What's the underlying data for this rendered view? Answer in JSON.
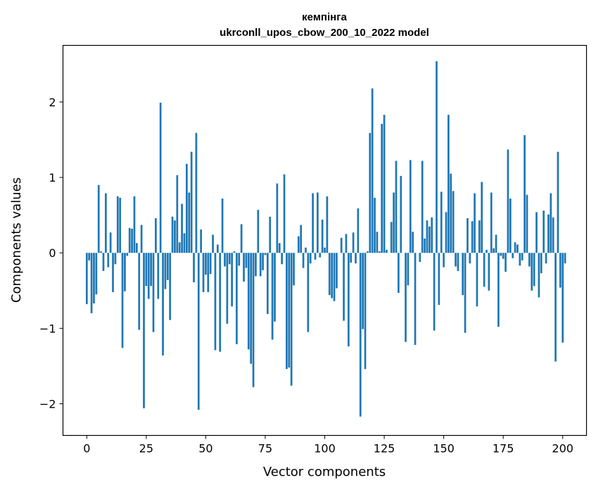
{
  "chart_data": {
    "type": "bar",
    "title": "кемпінга",
    "subtitle": "ukrconll_upos_cbow_200_10_2022 model",
    "xlabel": "Vector components",
    "ylabel": "Components values",
    "xlim": [
      -10,
      210
    ],
    "ylim": [
      -2.42,
      2.75
    ],
    "xticks": [
      0,
      25,
      50,
      75,
      100,
      125,
      150,
      175,
      200
    ],
    "yticks": [
      -2,
      -1,
      0,
      1,
      2
    ],
    "ytick_labels": [
      "−2",
      "−1",
      "0",
      "1",
      "2"
    ],
    "grid": false,
    "bar_color": "#1f77b4",
    "values": [
      -0.68,
      -0.1,
      -0.8,
      -0.67,
      -0.55,
      0.9,
      0.02,
      -0.24,
      0.79,
      -0.19,
      0.27,
      -0.52,
      -0.15,
      0.75,
      0.73,
      -1.26,
      -0.51,
      -0.04,
      0.33,
      0.32,
      0.75,
      0.13,
      -1.02,
      0.37,
      -2.06,
      -0.44,
      -0.61,
      -0.44,
      -1.05,
      0.46,
      -0.61,
      1.99,
      -1.36,
      -0.48,
      -0.36,
      -0.89,
      0.48,
      0.43,
      1.03,
      0.14,
      0.65,
      0.26,
      1.18,
      0.8,
      1.34,
      -0.39,
      1.59,
      -2.08,
      0.31,
      -0.52,
      -0.29,
      -0.52,
      -0.28,
      0.24,
      -1.29,
      0.11,
      -1.31,
      0.72,
      -0.18,
      -0.94,
      -0.15,
      -0.71,
      0.02,
      -1.21,
      -0.17,
      0.38,
      -0.38,
      -0.2,
      -1.28,
      -1.47,
      -1.78,
      -0.31,
      0.57,
      -0.31,
      -0.23,
      -0.03,
      -0.81,
      0.48,
      -1.15,
      -0.91,
      0.92,
      0.13,
      -0.15,
      1.04,
      -1.54,
      -1.52,
      -1.76,
      -0.43,
      0.0,
      0.22,
      0.37,
      -0.2,
      0.07,
      -1.05,
      -0.14,
      0.79,
      -0.09,
      0.8,
      -0.06,
      0.44,
      0.07,
      0.75,
      -0.56,
      -0.6,
      -0.64,
      -0.47,
      0.0,
      0.2,
      -0.9,
      0.25,
      -1.24,
      -0.13,
      0.27,
      -0.14,
      0.59,
      -2.17,
      -1.01,
      -1.54,
      0.02,
      1.59,
      2.18,
      0.73,
      0.28,
      0.02,
      1.71,
      1.83,
      0.04,
      0.0,
      0.41,
      0.8,
      1.22,
      -0.53,
      1.02,
      0.0,
      -1.18,
      -0.43,
      1.23,
      0.28,
      -1.22,
      0.0,
      -0.12,
      1.22,
      0.19,
      0.43,
      0.35,
      0.47,
      -1.03,
      2.54,
      -0.69,
      0.81,
      -0.19,
      0.54,
      1.83,
      1.05,
      0.82,
      -0.18,
      -0.24,
      0.0,
      -0.56,
      -1.06,
      0.46,
      -0.14,
      0.42,
      0.79,
      -0.71,
      0.43,
      0.94,
      -0.45,
      0.04,
      -0.5,
      0.8,
      0.06,
      0.24,
      -0.98,
      -0.04,
      -0.08,
      -0.25,
      1.37,
      0.72,
      -0.07,
      0.14,
      0.11,
      -0.17,
      -0.1,
      1.56,
      0.77,
      -0.18,
      -0.5,
      -0.44,
      0.54,
      -0.59,
      -0.27,
      0.56,
      -0.14,
      0.51,
      0.79,
      0.47,
      -1.44,
      1.34,
      -0.46,
      -1.19,
      -0.14
    ]
  }
}
